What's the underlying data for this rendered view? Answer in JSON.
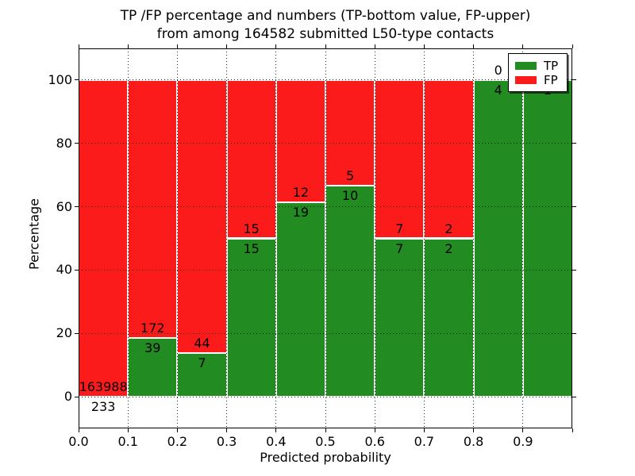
{
  "chart_data": {
    "type": "bar",
    "stacked": true,
    "normalized_to_percent": true,
    "title_line1": "TP /FP percentage and numbers (TP-bottom value, FP-upper)",
    "title_line2": "from among 164582 submitted L50-type contacts",
    "xlabel": "Predicted probability",
    "ylabel": "Percentage",
    "xlim": [
      0.0,
      1.0
    ],
    "ylim": [
      -10,
      110
    ],
    "grid": true,
    "grid_style": "dotted",
    "legend_position": "upper right",
    "background_color": "#ffffff",
    "bin_edges": [
      0.0,
      0.1,
      0.2,
      0.3,
      0.4,
      0.5,
      0.6,
      0.7,
      0.8,
      0.9,
      1.0
    ],
    "x_tick_labels": [
      "0.0",
      "0.1",
      "0.2",
      "0.3",
      "0.4",
      "0.5",
      "0.6",
      "0.7",
      "0.8",
      "0.9"
    ],
    "y_ticks": [
      0,
      20,
      40,
      60,
      80,
      100
    ],
    "series": [
      {
        "name": "TP",
        "color": "#228b22",
        "position": "bottom",
        "counts": [
          233,
          39,
          7,
          15,
          19,
          10,
          7,
          2,
          4,
          1
        ]
      },
      {
        "name": "FP",
        "color": "#fb1b1b",
        "position": "top",
        "counts": [
          163988,
          172,
          44,
          15,
          12,
          5,
          7,
          2,
          0,
          0
        ]
      }
    ],
    "annotation_note": "TP-bottom value, FP-upper",
    "total_contacts": "164582"
  }
}
